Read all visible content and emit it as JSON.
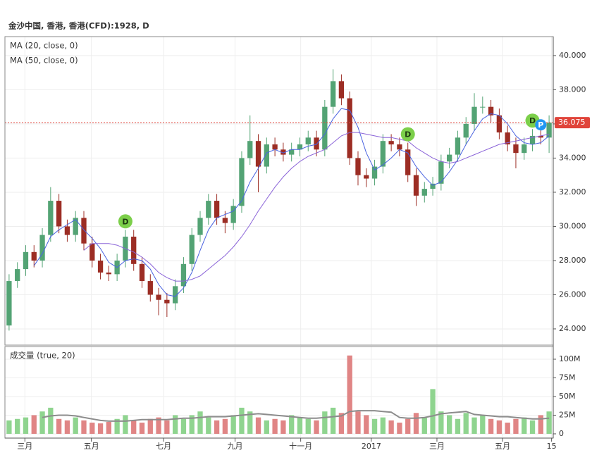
{
  "chart_data": [
    {
      "type": "candlestick",
      "title": "金沙中国, 香港, 香港(CFD):1928, D",
      "up_color": "#53a374",
      "down_color": "#9c2d24",
      "open": [
        24.2,
        26.8,
        27.5,
        28.5,
        28,
        29.5,
        31.5,
        30,
        29.5,
        30.5,
        29,
        28,
        27.3,
        27.2,
        28,
        29.4,
        27.8,
        26.8,
        26,
        25.7,
        25.5,
        26.5,
        27.8,
        29.5,
        30.5,
        31.5,
        30.5,
        30.2,
        31.2,
        34,
        35,
        33.5,
        34.8,
        34.5,
        34.2,
        34.5,
        34.8,
        35.2,
        34.5,
        37,
        38.5,
        37.5,
        34,
        33,
        32.8,
        33.5,
        35,
        34.8,
        34.5,
        33,
        31.8,
        32.2,
        32.5,
        33.8,
        34.2,
        35.2,
        36,
        37,
        37,
        36.5,
        35.5,
        34.8,
        34.3,
        34.8,
        35.3,
        35.2
      ],
      "high": [
        27.2,
        27.9,
        28.9,
        28.9,
        29.9,
        32.3,
        31.9,
        30.4,
        30.9,
        30.9,
        29.4,
        28.4,
        27.7,
        28.4,
        29.8,
        29.8,
        28.2,
        27.2,
        26.4,
        26.1,
        26.9,
        28.2,
        29.9,
        30.9,
        31.9,
        31.9,
        30.9,
        31.6,
        34.4,
        36.5,
        35.4,
        35.2,
        35.2,
        34.9,
        34.9,
        35.2,
        35.6,
        35.6,
        37.4,
        39.2,
        38.9,
        37.9,
        34.4,
        33.4,
        33.9,
        35.4,
        35.4,
        35.2,
        34.9,
        33.4,
        32.6,
        32.9,
        34.2,
        34.6,
        35.6,
        36.4,
        37.8,
        37.6,
        37.4,
        36.9,
        35.9,
        35.2,
        35.2,
        35.7,
        35.7,
        36.5
      ],
      "low": [
        23.9,
        26.4,
        27.1,
        27.6,
        27.6,
        29.1,
        29.6,
        29.1,
        29.1,
        28.6,
        27.6,
        26.9,
        26.8,
        26.8,
        27.6,
        27.4,
        26.4,
        25.6,
        24.8,
        24.7,
        25.1,
        26.1,
        27.4,
        29.1,
        30.1,
        30.1,
        29.6,
        29.8,
        30.8,
        33.6,
        32.0,
        33.1,
        34.1,
        33.8,
        33.8,
        34.1,
        34.4,
        34.1,
        34.1,
        36.6,
        37.1,
        33.6,
        32.4,
        32.3,
        32.4,
        33.1,
        34.4,
        34.1,
        32.6,
        31.2,
        31.4,
        31.8,
        32.1,
        33.4,
        33.8,
        34.8,
        35.6,
        36.6,
        36.1,
        35.1,
        34.4,
        33.4,
        33.9,
        34.4,
        34.8,
        34.3
      ],
      "close": [
        26.8,
        27.5,
        28.5,
        28,
        29.5,
        31.5,
        30,
        29.5,
        30.5,
        29,
        28,
        27.3,
        27.2,
        28,
        29.4,
        27.8,
        26.8,
        26,
        25.7,
        25.5,
        26.5,
        27.8,
        29.5,
        30.5,
        31.5,
        30.5,
        30.2,
        31.2,
        34,
        35,
        33.5,
        34.8,
        34.5,
        34.2,
        34.5,
        34.8,
        35.2,
        34.5,
        37,
        38.5,
        37.5,
        34,
        33,
        32.8,
        33.5,
        35,
        34.8,
        34.5,
        33,
        31.8,
        32.2,
        32.5,
        33.8,
        34.2,
        35.2,
        36,
        37,
        37,
        36.5,
        35.5,
        34.8,
        34.3,
        34.8,
        35.3,
        35.2,
        36.075
      ],
      "last_color": "#e0443a",
      "series": [
        {
          "name": "MA (20, close, 0)",
          "color": "#4a63e0",
          "values": [
            null,
            null,
            null,
            27.7,
            28.4,
            29.4,
            29.8,
            30.1,
            30.4,
            29.8,
            29.3,
            28.7,
            27.9,
            27.6,
            28.0,
            28.1,
            28.0,
            27.5,
            26.6,
            26.0,
            25.9,
            26.4,
            27.3,
            28.6,
            29.8,
            30.5,
            30.7,
            30.9,
            31.5,
            32.6,
            33.4,
            34.3,
            34.5,
            34.3,
            34.5,
            34.5,
            34.7,
            34.8,
            35.4,
            36.3,
            36.9,
            36.8,
            35.8,
            34.3,
            33.3,
            33.6,
            34.0,
            34.5,
            34.3,
            33.5,
            32.9,
            32.4,
            32.6,
            33.2,
            33.9,
            34.8,
            35.6,
            36.3,
            36.6,
            36.5,
            36.0,
            35.3,
            34.9,
            34.8,
            34.9,
            35.3
          ]
        },
        {
          "name": "MA (50, close, 0)",
          "color": "#8a63d8",
          "values": [
            null,
            null,
            null,
            null,
            null,
            null,
            null,
            null,
            null,
            28.6,
            29.0,
            29.0,
            29.0,
            28.9,
            28.7,
            28.5,
            28.2,
            27.8,
            27.3,
            27.0,
            26.8,
            26.8,
            26.9,
            27.1,
            27.5,
            27.9,
            28.3,
            28.8,
            29.4,
            30.1,
            30.9,
            31.6,
            32.3,
            32.9,
            33.4,
            33.8,
            34.1,
            34.3,
            34.5,
            34.9,
            35.3,
            35.5,
            35.5,
            35.4,
            35.3,
            35.2,
            35.2,
            35.1,
            35.0,
            34.6,
            34.3,
            34.0,
            33.8,
            33.7,
            33.8,
            34.0,
            34.2,
            34.4,
            34.6,
            34.8,
            34.9,
            35.0,
            35.1,
            35.2,
            35.3,
            35.4
          ]
        }
      ],
      "events": [
        {
          "label": "D",
          "x": 14,
          "color": "#7ccf4a"
        },
        {
          "label": "D",
          "x": 48,
          "color": "#7ccf4a"
        },
        {
          "label": "D",
          "x": 63,
          "color": "#7ccf4a"
        },
        {
          "label": "P",
          "x": 64,
          "color": "#2196f3"
        }
      ],
      "xlim": [
        -0.5,
        65.5
      ],
      "xticks": [
        {
          "value": 1.9,
          "label": "三月"
        },
        {
          "value": 9.9,
          "label": "五月"
        },
        {
          "value": 18.6,
          "label": "七月"
        },
        {
          "value": 27.2,
          "label": "九月"
        },
        {
          "value": 35.1,
          "label": "十一月"
        },
        {
          "value": 43.6,
          "label": "2017"
        },
        {
          "value": 51.5,
          "label": "三月"
        },
        {
          "value": 59.4,
          "label": "五月"
        },
        {
          "value": 65.3,
          "label": "15"
        }
      ],
      "ylim": [
        23.05,
        41.11
      ],
      "yticks": [
        {
          "value": 24,
          "label": "24.000"
        },
        {
          "value": 26,
          "label": "26.000"
        },
        {
          "value": 28,
          "label": "28.000"
        },
        {
          "value": 30,
          "label": "30.000"
        },
        {
          "value": 32,
          "label": "32.000"
        },
        {
          "value": 34,
          "label": "34.000"
        },
        {
          "value": 36,
          "label": "36.000"
        },
        {
          "value": 38,
          "label": "38.000"
        },
        {
          "value": 40,
          "label": "40.000"
        }
      ],
      "grid": true
    },
    {
      "type": "bar",
      "title": "成交量 (true, 20)",
      "up_color": "#8fd48f",
      "down_color": "#e08585",
      "values": [
        18000000.0,
        20000000.0,
        22000000.0,
        25000000.0,
        30000000.0,
        35000000.0,
        20000000.0,
        18000000.0,
        22000000.0,
        18000000.0,
        15000000.0,
        14000000.0,
        16000000.0,
        20000000.0,
        25000000.0,
        18000000.0,
        15000000.0,
        20000000.0,
        22000000.0,
        18000000.0,
        25000000.0,
        20000000.0,
        25000000.0,
        30000000.0,
        22000000.0,
        18000000.0,
        20000000.0,
        25000000.0,
        35000000.0,
        30000000.0,
        22000000.0,
        18000000.0,
        20000000.0,
        18000000.0,
        25000000.0,
        22000000.0,
        20000000.0,
        18000000.0,
        30000000.0,
        35000000.0,
        28000000.0,
        105000000.0,
        30000000.0,
        25000000.0,
        20000000.0,
        22000000.0,
        18000000.0,
        15000000.0,
        20000000.0,
        28000000.0,
        22000000.0,
        60000000.0,
        30000000.0,
        25000000.0,
        20000000.0,
        28000000.0,
        22000000.0,
        25000000.0,
        20000000.0,
        18000000.0,
        15000000.0,
        20000000.0,
        22000000.0,
        18000000.0,
        25000000.0,
        30000000.0
      ],
      "series": [
        {
          "color": "#8c8c8c",
          "values": [
            null,
            null,
            null,
            null,
            22000000.0,
            24000000.0,
            25000000.0,
            25000000.0,
            24000000.0,
            22000000.0,
            20000000.0,
            18000000.0,
            17000000.0,
            17000000.0,
            17000000.0,
            18000000.0,
            19000000.0,
            19000000.0,
            19000000.0,
            19000000.0,
            20000000.0,
            21000000.0,
            21000000.0,
            22000000.0,
            23000000.0,
            23000000.0,
            23000000.0,
            24000000.0,
            25000000.0,
            26000000.0,
            27000000.0,
            26000000.0,
            25000000.0,
            24000000.0,
            23000000.0,
            22000000.0,
            21000000.0,
            21000000.0,
            22000000.0,
            23000000.0,
            24000000.0,
            30000000.0,
            31000000.0,
            31000000.0,
            31000000.0,
            30000000.0,
            29000000.0,
            22000000.0,
            21000000.0,
            21000000.0,
            22000000.0,
            24000000.0,
            27000000.0,
            28000000.0,
            29000000.0,
            30000000.0,
            26000000.0,
            25000000.0,
            24000000.0,
            23000000.0,
            23000000.0,
            22000000.0,
            21000000.0,
            20000000.0,
            20000000.0,
            21000000.0
          ]
        }
      ],
      "ylim": [
        -5700000,
        117000000
      ],
      "yticks": [
        0,
        {
          "value": 25000000,
          "label": "25M"
        },
        {
          "value": 50000000,
          "label": "50M"
        },
        {
          "value": 75000000,
          "label": "75M"
        },
        {
          "value": 100000000,
          "label": "100M"
        }
      ],
      "grid": true
    }
  ]
}
